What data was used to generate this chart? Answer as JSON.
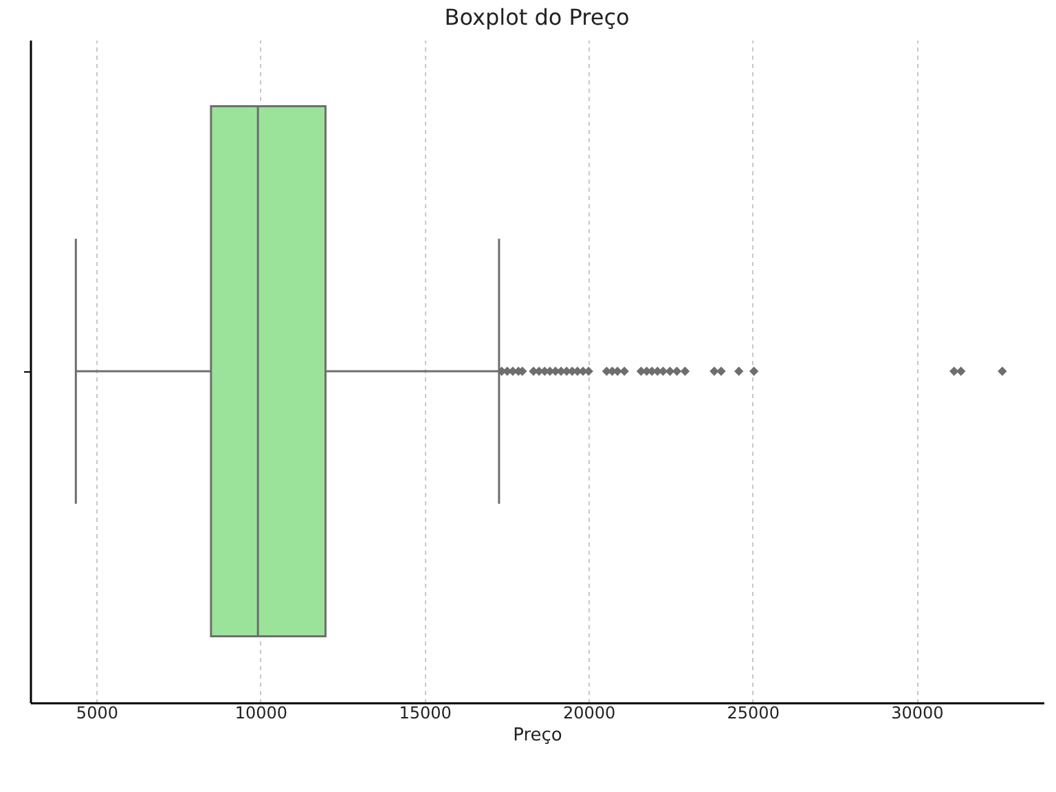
{
  "chart_data": {
    "type": "box",
    "title": "Boxplot do Preço",
    "xlabel": "Preço",
    "categories": [
      null
    ],
    "orientation": "horizontal",
    "xlim": [
      2980,
      33870
    ],
    "xticks": [
      5000,
      10000,
      15000,
      20000,
      25000,
      30000
    ],
    "grid": "x",
    "marker": "diamond",
    "series": [
      {
        "color": "#9be39b",
        "boxes": [
          {
            "low": 4370,
            "q1": 8490,
            "median": 9920,
            "q3": 11980,
            "high": 17270,
            "outliers": [
              17350,
              17520,
              17690,
              17860,
              17980,
              18320,
              18490,
              18660,
              18820,
              18990,
              19160,
              19330,
              19500,
              19660,
              19830,
              20000,
              20550,
              20720,
              20880,
              21090,
              21600,
              21770,
              21930,
              22100,
              22270,
              22480,
              22690,
              22940,
              23830,
              24040,
              24580,
              25040,
              31140,
              31350,
              32610
            ]
          }
        ]
      }
    ]
  }
}
